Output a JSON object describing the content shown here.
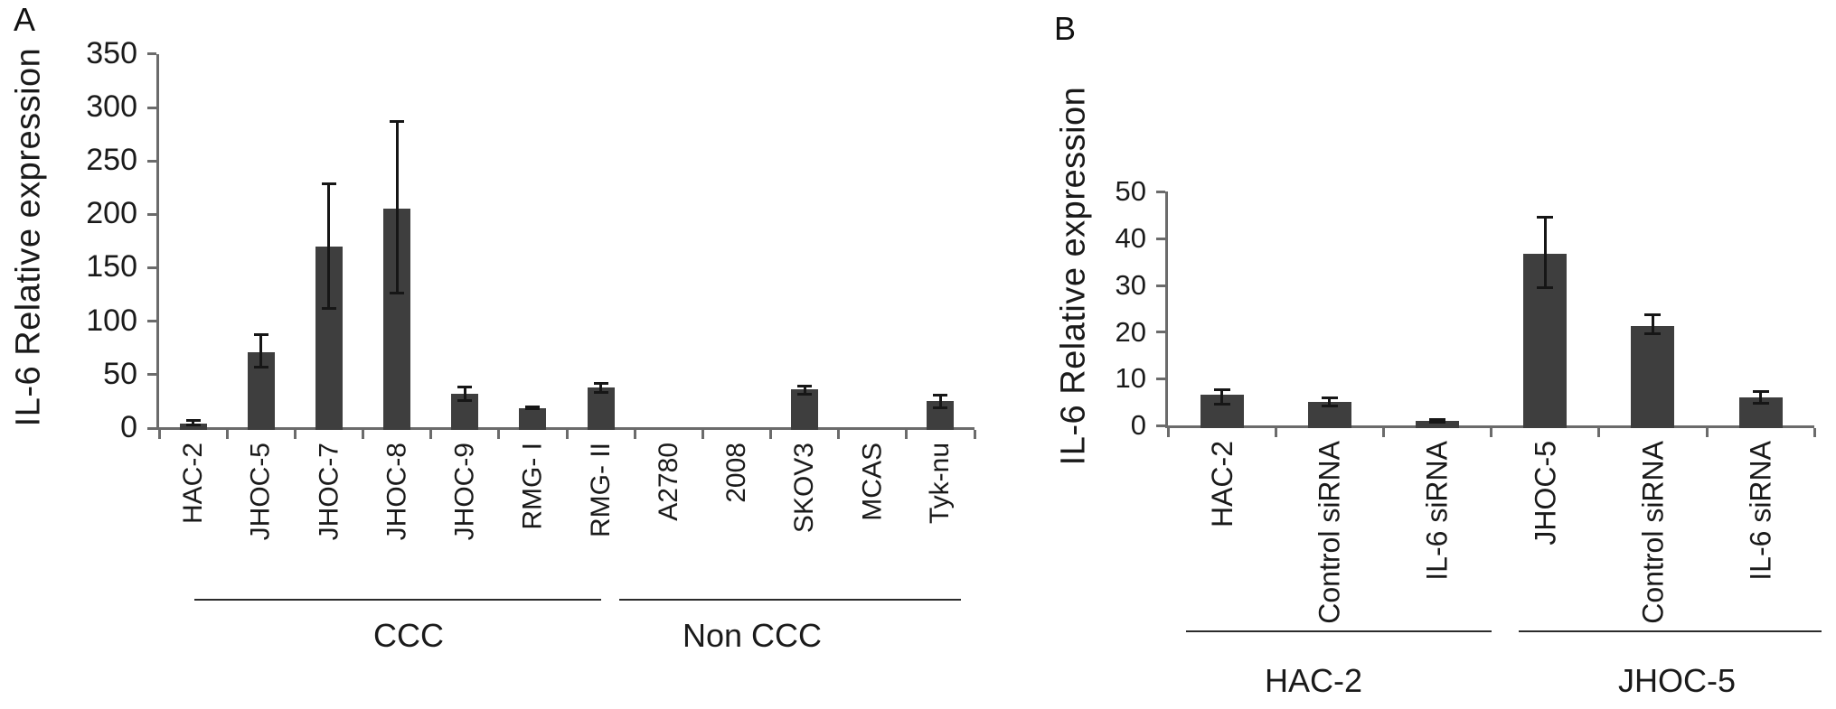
{
  "chart_data": [
    {
      "panel": "A",
      "type": "bar",
      "title": "",
      "xlabel": "",
      "ylabel": "IL-6 Relative expression",
      "ylim": [
        0,
        350
      ],
      "ytick_step": 50,
      "grid": false,
      "legend": "none",
      "bar_color": "#3e3e3e",
      "error_bar_color": "#161616",
      "categories": [
        "HAC-2",
        "JHOC-5",
        "JHOC-7",
        "JHOC-8",
        "JHOC-9",
        "RMG- I",
        "RMG- II",
        "A2780",
        "2008",
        "SKOV3",
        "MCAS",
        "Tyk-nu"
      ],
      "values": [
        4.5,
        71,
        170,
        205,
        32,
        19,
        38,
        0,
        0,
        36,
        0,
        25
      ],
      "errors_low": [
        2.5,
        57,
        112,
        126,
        25,
        17.5,
        33,
        null,
        null,
        31,
        null,
        19
      ],
      "errors_high": [
        7.5,
        88,
        229,
        287,
        39,
        20.5,
        42,
        null,
        null,
        40,
        null,
        31
      ],
      "group_brackets": [
        {
          "label": "CCC",
          "start": 0,
          "end": 6
        },
        {
          "label": "Non CCC",
          "start": 7,
          "end": 11
        }
      ]
    },
    {
      "panel": "B",
      "type": "bar",
      "title": "",
      "xlabel": "",
      "ylabel": "IL-6 Relative expression",
      "ylim": [
        0,
        50
      ],
      "ytick_step": 10,
      "grid": false,
      "legend": "none",
      "bar_color": "#3e3e3e",
      "error_bar_color": "#161616",
      "categories": [
        "HAC-2",
        "Control siRNA",
        "IL-6 siRNA",
        "JHOC-5",
        "Control siRNA",
        "IL-6 siRNA"
      ],
      "values": [
        6.6,
        5.2,
        1.0,
        36.8,
        21.4,
        6.0
      ],
      "errors_low": [
        4.5,
        4.1,
        0.6,
        29.4,
        19.5,
        4.7
      ],
      "errors_high": [
        7.9,
        6.1,
        1.5,
        44.6,
        23.8,
        7.5
      ],
      "group_brackets": [
        {
          "label": "HAC-2",
          "start": 0,
          "end": 2
        },
        {
          "label": "JHOC-5",
          "start": 3,
          "end": 5
        }
      ]
    }
  ]
}
